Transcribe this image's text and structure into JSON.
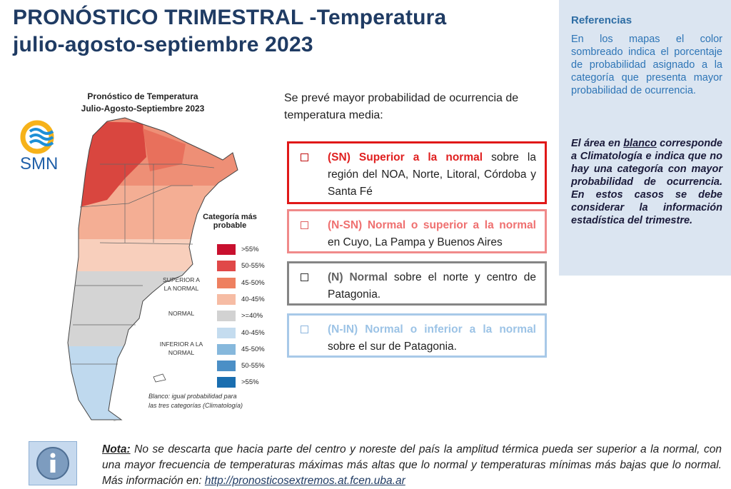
{
  "header": {
    "title_line1": "PRONÓSTICO TRIMESTRAL -Temperatura",
    "title_line2": "julio-agosto-septiembre 2023"
  },
  "map": {
    "title_line1": "Pronóstico de Temperatura",
    "title_line2": "Julio-Agosto-Septiembre 2023",
    "logo": "SMN",
    "legend": {
      "title": "Categoría más probable",
      "groups": [
        "SUPERIOR A LA NORMAL",
        "NORMAL",
        "INFERIOR A LA NORMAL"
      ],
      "items": [
        ">55%",
        "50-55%",
        "45-50%",
        "40-45%",
        ">=40%",
        "40-45%",
        "45-50%",
        "50-55%",
        ">55%"
      ]
    },
    "footnote_line1": "Blanco: igual probabilidad para",
    "footnote_line2": "las tres categorías (Climatología)"
  },
  "forecast": {
    "intro": "Se prevé mayor probabilidad de ocurrencia de temperatura media:",
    "items": [
      {
        "label": "(SN) Superior a la normal",
        "text": "sobre la región del NOA, Norte, Litoral, Córdoba y Santa Fé"
      },
      {
        "label": "(N-SN) Normal o superior a la normal",
        "text": "en Cuyo, La Pampa y Buenos Aires"
      },
      {
        "label": "(N) Normal",
        "text": "sobre el norte y centro de Patagonia."
      },
      {
        "label": "(N-IN) Normal o inferior  a la normal",
        "text": "sobre el sur de Patagonia."
      }
    ]
  },
  "references": {
    "title": "Referencias",
    "paragraph1": "En los mapas el color sombreado indica el porcentaje de probabilidad asignado a la categoría que presenta mayor probabilidad de ocurrencia.",
    "paragraph2": [
      "El área en",
      "blanco",
      "corresponde a Climatología e indica que no hay una categoría con mayor probabilidad de ocurrencia. En estos casos se debe considerar la información estadística del trimestre."
    ]
  },
  "note": {
    "label": "Nota:",
    "text": "No se descarta que hacia parte del centro y noreste del país la amplitud térmica pueda ser superior a la normal, con una mayor frecuencia de temperaturas máximas más altas que lo normal y temperaturas mínimas más bajas que lo normal. Más información en:",
    "link": "http://pronosticosextremos.at.fcen.uba.ar"
  }
}
